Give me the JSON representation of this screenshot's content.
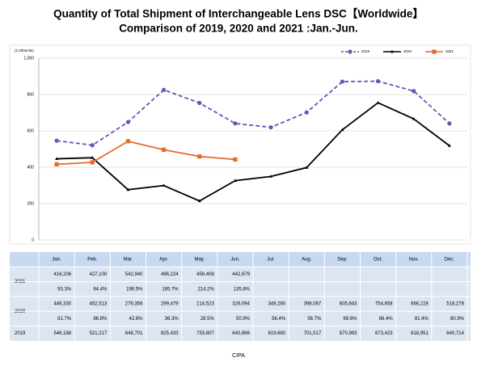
{
  "chart_data": {
    "type": "line",
    "title": "Quantity of Total Shipment of Interchangeable Lens DSC【Worldwide】",
    "subtitle": "Comparison of 2019, 2020 and 2021 :Jan.-Jun.",
    "y_label": "(1,000units)",
    "source": "CIPA",
    "categories": [
      "Jan.",
      "Feb.",
      "Mar.",
      "Apr.",
      "May.",
      "Jun.",
      "Jul.",
      "Aug.",
      "Sep.",
      "Oct.",
      "Nov.",
      "Dec."
    ],
    "ylim": [
      0,
      1000
    ],
    "yticks": [
      0,
      200,
      400,
      600,
      800,
      {
        "value": 1000,
        "label": "1,000"
      }
    ],
    "grid": true,
    "legend": "top-right",
    "series": [
      {
        "name": "2019",
        "color": "#5a5ab8",
        "dash": true,
        "marker": "circle",
        "values": [
          546.188,
          521.217,
          648.701,
          825.433,
          753.807,
          640.866,
          619.68,
          701.517,
          870.993,
          873.423,
          818.951,
          640.714
        ],
        "value_labels": [
          "546,188",
          "521,217",
          "648,701",
          "825,433",
          "753,807",
          "640,866",
          "619,680",
          "701,517",
          "870,993",
          "873,423",
          "818,951",
          "640,714"
        ]
      },
      {
        "name": "2020",
        "color": "#000000",
        "dash": false,
        "marker": "triangle",
        "values": [
          446.33,
          452.513,
          276.356,
          299.479,
          214.523,
          326.094,
          349.28,
          398.067,
          605.843,
          754.658,
          666.228,
          518.278
        ],
        "value_labels": [
          "446,330",
          "452,513",
          "276,356",
          "299,479",
          "214,523",
          "326,094",
          "349,280",
          "398,067",
          "605,843",
          "754,658",
          "666,228",
          "518,278"
        ],
        "ratios": [
          81.7,
          86.8,
          42.6,
          36.3,
          28.5,
          50.9,
          56.4,
          56.7,
          69.6,
          86.4,
          81.4,
          80.9
        ],
        "ratio_labels": [
          "81.7%",
          "86.8%",
          "42.6%",
          "36.3%",
          "28.5%",
          "50.9%",
          "56.4%",
          "56.7%",
          "69.6%",
          "86.4%",
          "81.4%",
          "80.9%"
        ]
      },
      {
        "name": "2021",
        "color": "#e8692c",
        "dash": false,
        "marker": "square",
        "values": [
          416.206,
          427.1,
          542.94,
          496.224,
          459.408,
          442.679,
          null,
          null,
          null,
          null,
          null,
          null
        ],
        "value_labels": [
          "416,206",
          "427,100",
          "542,940",
          "496,224",
          "459,408",
          "442,679",
          null,
          null,
          null,
          null,
          null,
          null
        ],
        "ratios": [
          93.3,
          94.4,
          196.5,
          165.7,
          214.2,
          135.8,
          null,
          null,
          null,
          null,
          null,
          null
        ],
        "ratio_labels": [
          "93.3%",
          "94.4%",
          "196.5%",
          "165.7%",
          "214.2%",
          "135.8%",
          null,
          null,
          null,
          null,
          null,
          null
        ]
      }
    ]
  }
}
